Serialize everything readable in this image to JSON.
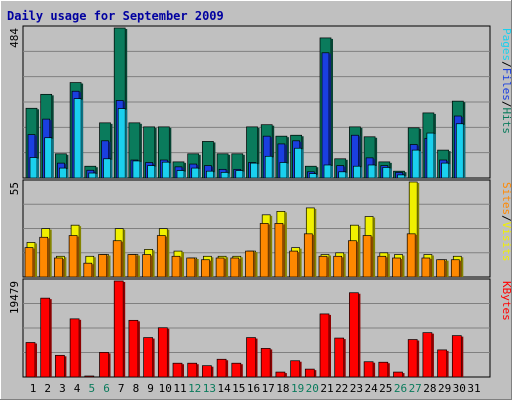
{
  "chart_data": [
    {
      "type": "bar",
      "title": "Daily usage for September 2009",
      "categories": [
        "1",
        "2",
        "3",
        "4",
        "5",
        "6",
        "7",
        "8",
        "9",
        "10",
        "11",
        "12",
        "13",
        "14",
        "15",
        "16",
        "17",
        "18",
        "19",
        "20",
        "21",
        "22",
        "23",
        "24",
        "25",
        "26",
        "27",
        "28",
        "29",
        "30",
        "31"
      ],
      "weekend_days": [
        "5",
        "6",
        "12",
        "13",
        "19",
        "20",
        "26",
        "27"
      ],
      "ymax_label": "484",
      "ylim": [
        0,
        484
      ],
      "legend": [
        "Pages",
        "/",
        "Files",
        "/",
        "Hits"
      ],
      "series": [
        {
          "name": "Hits",
          "color": "#0a7b5c",
          "values": [
            225,
            270,
            78,
            308,
            38,
            178,
            484,
            178,
            165,
            165,
            52,
            78,
            118,
            78,
            78,
            165,
            172,
            135,
            138,
            38,
            452,
            62,
            165,
            133,
            52,
            22,
            162,
            210,
            90,
            248,
            0
          ]
        },
        {
          "name": "Files",
          "color": "#1a3fe0",
          "values": [
            140,
            190,
            48,
            280,
            25,
            120,
            250,
            58,
            50,
            58,
            36,
            45,
            40,
            28,
            28,
            50,
            135,
            110,
            120,
            20,
            404,
            40,
            138,
            65,
            40,
            18,
            108,
            128,
            58,
            200,
            0
          ]
        },
        {
          "name": "Pages",
          "color": "#1ad0ee",
          "values": [
            66,
            130,
            32,
            256,
            16,
            62,
            224,
            55,
            40,
            51,
            24,
            32,
            22,
            18,
            24,
            48,
            70,
            50,
            96,
            14,
            42,
            20,
            38,
            42,
            34,
            10,
            90,
            145,
            48,
            175,
            0
          ]
        }
      ]
    },
    {
      "type": "bar",
      "ymax_label": "55",
      "ylim": [
        0,
        55
      ],
      "legend": [
        "Sites",
        "/",
        "Visits"
      ],
      "series": [
        {
          "name": "Visits",
          "color": "#f0f000",
          "values": [
            20,
            28,
            12,
            30,
            12,
            13,
            28,
            13,
            16,
            28,
            15,
            11,
            12,
            12,
            12,
            15,
            36,
            38,
            17,
            40,
            13,
            14,
            30,
            35,
            14,
            13,
            55,
            13,
            10,
            12,
            0
          ]
        },
        {
          "name": "Sites",
          "color": "#ff8800",
          "values": [
            17,
            23,
            11,
            24,
            8,
            13,
            21,
            13,
            13,
            24,
            12,
            11,
            10,
            11,
            11,
            15,
            31,
            31,
            15,
            25,
            12,
            12,
            21,
            24,
            12,
            11,
            25,
            11,
            10,
            10,
            0
          ]
        }
      ]
    },
    {
      "type": "bar",
      "ymax_label": "19479",
      "ylim": [
        0,
        19479
      ],
      "legend": [
        "KBytes"
      ],
      "series": [
        {
          "name": "KBytes",
          "color": "#ff0000",
          "values": [
            7000,
            16000,
            4400,
            11800,
            200,
            5000,
            19479,
            11500,
            8000,
            10000,
            2800,
            2800,
            2300,
            3600,
            2800,
            8000,
            5800,
            1000,
            3300,
            1600,
            12800,
            7900,
            17100,
            3100,
            3000,
            1000,
            7600,
            9000,
            5500,
            8400,
            0
          ]
        }
      ]
    }
  ]
}
